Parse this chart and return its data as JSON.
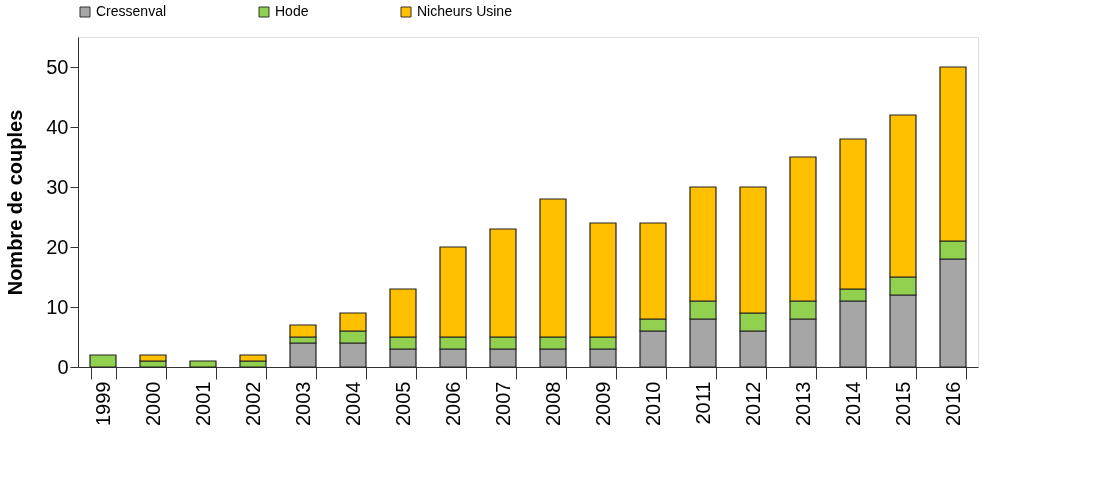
{
  "chart_data": {
    "type": "bar",
    "stacked": true,
    "ylabel": "Nombre de couples",
    "legend": "top",
    "grid": false,
    "categories": [
      "1999",
      "2000",
      "2001",
      "2002",
      "2003",
      "2004",
      "2005",
      "2006",
      "2007",
      "2008",
      "2009",
      "2010",
      "2011",
      "2012",
      "2013",
      "2014",
      "2015",
      "2016"
    ],
    "ylim": [
      0,
      55
    ],
    "yticks": [
      0,
      10,
      20,
      30,
      40,
      50
    ],
    "series": [
      {
        "name": "Cressenval",
        "color": "#a6a6a6",
        "values": [
          0,
          0,
          0,
          0,
          4,
          4,
          3,
          3,
          3,
          3,
          3,
          6,
          8,
          6,
          8,
          11,
          12,
          18
        ]
      },
      {
        "name": "Hode",
        "color": "#92d050",
        "values": [
          2,
          1,
          1,
          1,
          1,
          2,
          2,
          2,
          2,
          2,
          2,
          2,
          3,
          3,
          3,
          2,
          3,
          3
        ]
      },
      {
        "name": "Nicheurs Usine",
        "color": "#ffc000",
        "values": [
          0,
          1,
          0,
          1,
          2,
          3,
          8,
          15,
          18,
          23,
          19,
          16,
          19,
          21,
          24,
          25,
          27,
          29
        ]
      }
    ]
  }
}
